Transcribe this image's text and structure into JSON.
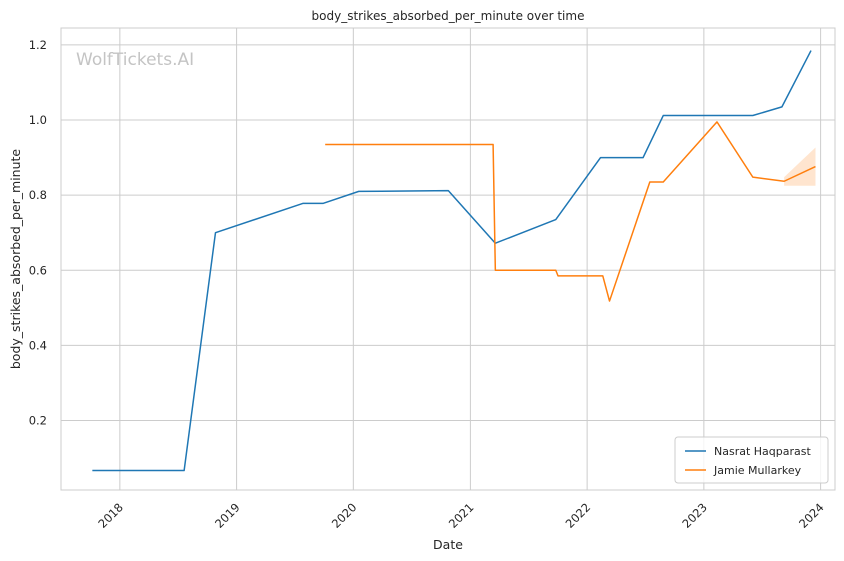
{
  "chart_data": {
    "type": "line",
    "title": "body_strikes_absorbed_per_minute over time",
    "xlabel": "Date",
    "ylabel": "body_strikes_absorbed_per_minute",
    "watermark": "WolfTickets.AI",
    "xlim": [
      "2017-07-01",
      "2024-02-15"
    ],
    "ylim": [
      0.015,
      1.245
    ],
    "x_ticks": [
      "2018",
      "2019",
      "2020",
      "2021",
      "2022",
      "2023",
      "2024"
    ],
    "y_ticks": [
      "0.2",
      "0.4",
      "0.6",
      "0.8",
      "1.0",
      "1.2"
    ],
    "grid": true,
    "legend_position": "bottom-right",
    "series": [
      {
        "name": "Nasrat Haqparast",
        "color": "#1f77b4",
        "points": [
          [
            "2017-10-07",
            0.067
          ],
          [
            "2018-07-21",
            0.067
          ],
          [
            "2018-10-27",
            0.7
          ],
          [
            "2019-07-27",
            0.778
          ],
          [
            "2019-09-28",
            0.778
          ],
          [
            "2020-01-18",
            0.81
          ],
          [
            "2020-10-24",
            0.812
          ],
          [
            "2021-03-20",
            0.672
          ],
          [
            "2021-09-25",
            0.735
          ],
          [
            "2022-02-12",
            0.9
          ],
          [
            "2022-06-25",
            0.9
          ],
          [
            "2022-08-27",
            1.012
          ],
          [
            "2023-06-03",
            1.012
          ],
          [
            "2023-09-02",
            1.035
          ],
          [
            "2023-12-02",
            1.185
          ]
        ]
      },
      {
        "name": "Jamie Mullarkey",
        "color": "#ff7f0e",
        "points": [
          [
            "2019-10-05",
            0.935
          ],
          [
            "2021-03-13",
            0.935
          ],
          [
            "2021-03-20",
            0.6
          ],
          [
            "2021-09-25",
            0.6
          ],
          [
            "2021-10-02",
            0.585
          ],
          [
            "2022-02-19",
            0.585
          ],
          [
            "2022-03-12",
            0.518
          ],
          [
            "2022-07-16",
            0.835
          ],
          [
            "2022-08-27",
            0.835
          ],
          [
            "2023-02-11",
            0.995
          ],
          [
            "2023-06-03",
            0.848
          ],
          [
            "2023-09-09",
            0.837
          ],
          [
            "2023-12-16",
            0.876
          ]
        ],
        "band": [
          [
            "2023-09-09",
            0.825,
            0.848
          ],
          [
            "2023-12-16",
            0.825,
            0.927
          ]
        ]
      }
    ]
  }
}
